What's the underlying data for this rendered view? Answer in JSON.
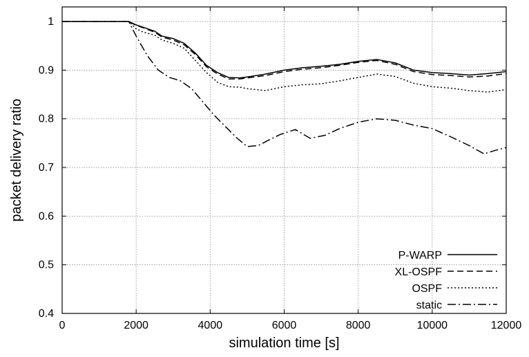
{
  "chart_data": {
    "type": "line",
    "title": "",
    "xlabel": "simulation time [s]",
    "ylabel": "packet delivery ratio",
    "xlim": [
      0,
      12000
    ],
    "ylim": [
      0.4,
      1.03
    ],
    "xticks": [
      0,
      2000,
      4000,
      6000,
      8000,
      10000,
      12000
    ],
    "yticks": [
      0.4,
      0.5,
      0.6,
      0.7,
      0.8,
      0.9,
      1
    ],
    "xtick_labels": [
      "0",
      "2000",
      "4000",
      "6000",
      "8000",
      "10000",
      "12000"
    ],
    "ytick_labels": [
      "0.4",
      "0.5",
      "0.6",
      "0.7",
      "0.8",
      "0.9",
      "1"
    ],
    "grid": true,
    "legend_position": "bottom-right",
    "series": [
      {
        "name": "P-WARP",
        "dash": "",
        "x": [
          0,
          1800,
          2000,
          2200,
          2500,
          2700,
          3000,
          3300,
          3600,
          3900,
          4200,
          4500,
          4800,
          5000,
          5500,
          6000,
          6500,
          7000,
          7500,
          8000,
          8500,
          9000,
          9500,
          10000,
          10500,
          11000,
          11500,
          12000
        ],
        "y": [
          1.0,
          1.0,
          0.993,
          0.988,
          0.98,
          0.97,
          0.965,
          0.955,
          0.935,
          0.91,
          0.895,
          0.885,
          0.884,
          0.886,
          0.892,
          0.9,
          0.905,
          0.908,
          0.912,
          0.918,
          0.922,
          0.915,
          0.9,
          0.895,
          0.893,
          0.89,
          0.893,
          0.897
        ]
      },
      {
        "name": "XL-OSPF",
        "dash": "9 5",
        "x": [
          0,
          1800,
          2000,
          2200,
          2500,
          2700,
          3000,
          3300,
          3600,
          3900,
          4200,
          4500,
          4800,
          5000,
          5500,
          6000,
          6500,
          7000,
          7500,
          8000,
          8500,
          9000,
          9500,
          10000,
          10500,
          11000,
          11500,
          12000
        ],
        "y": [
          1.0,
          1.0,
          0.992,
          0.987,
          0.978,
          0.968,
          0.962,
          0.952,
          0.932,
          0.907,
          0.892,
          0.882,
          0.882,
          0.884,
          0.889,
          0.897,
          0.902,
          0.905,
          0.91,
          0.916,
          0.92,
          0.912,
          0.897,
          0.891,
          0.889,
          0.886,
          0.888,
          0.893
        ]
      },
      {
        "name": "OSPF",
        "dash": "2 3",
        "x": [
          0,
          1800,
          2000,
          2200,
          2500,
          2700,
          3000,
          3300,
          3600,
          3900,
          4200,
          4500,
          4800,
          5000,
          5500,
          6000,
          6500,
          7000,
          7500,
          8000,
          8500,
          9000,
          9500,
          10000,
          10500,
          11000,
          11500,
          12000
        ],
        "y": [
          1.0,
          1.0,
          0.985,
          0.978,
          0.972,
          0.962,
          0.955,
          0.945,
          0.92,
          0.895,
          0.875,
          0.866,
          0.865,
          0.862,
          0.858,
          0.866,
          0.87,
          0.872,
          0.878,
          0.885,
          0.892,
          0.887,
          0.873,
          0.866,
          0.863,
          0.858,
          0.855,
          0.86
        ]
      },
      {
        "name": "static",
        "dash": "12 4 2 4",
        "x": [
          0,
          1800,
          2000,
          2300,
          2600,
          2900,
          3200,
          3500,
          3800,
          4100,
          4400,
          4700,
          5000,
          5300,
          5600,
          5900,
          6300,
          6700,
          7100,
          7500,
          8000,
          8500,
          9000,
          9500,
          10000,
          10500,
          11000,
          11400,
          11700,
          12000
        ],
        "y": [
          1.0,
          1.0,
          0.97,
          0.93,
          0.9,
          0.885,
          0.878,
          0.862,
          0.835,
          0.808,
          0.785,
          0.762,
          0.743,
          0.745,
          0.757,
          0.768,
          0.778,
          0.76,
          0.766,
          0.78,
          0.793,
          0.8,
          0.797,
          0.787,
          0.78,
          0.763,
          0.745,
          0.728,
          0.735,
          0.741
        ]
      }
    ]
  }
}
